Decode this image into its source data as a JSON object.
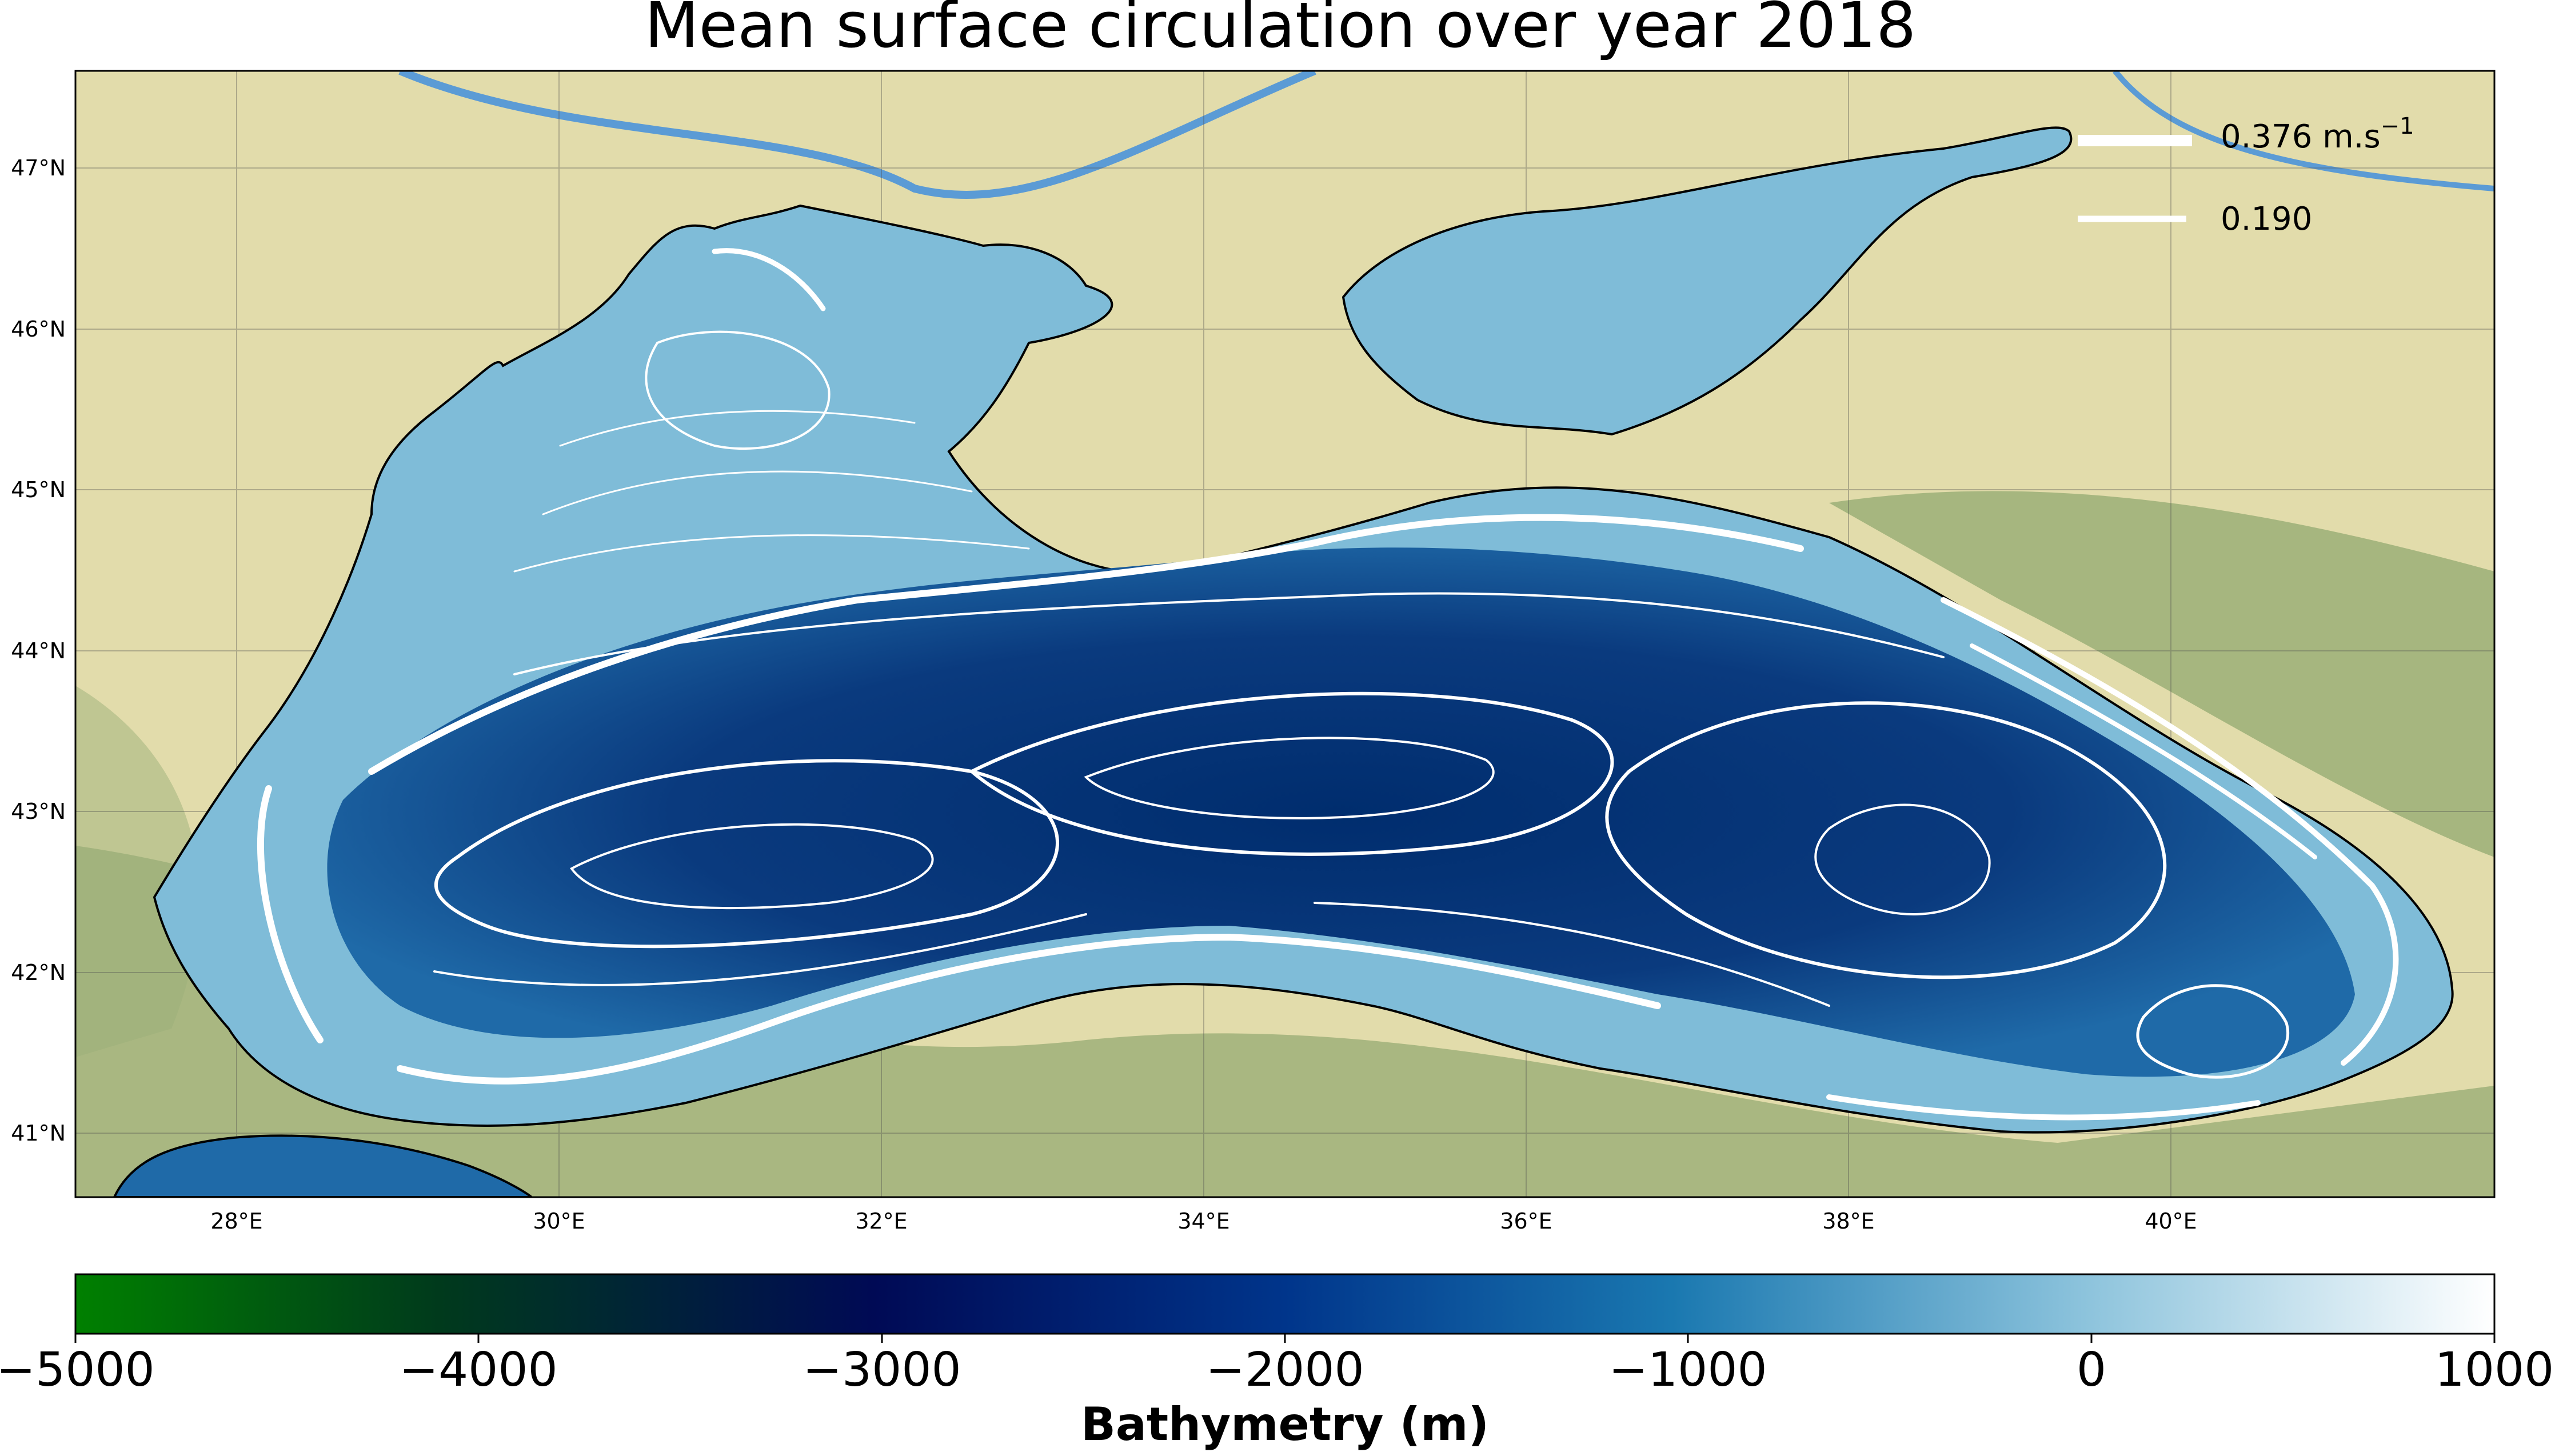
{
  "title": "Mean surface circulation over year 2018",
  "map": {
    "lat_ticks": [
      "47°N",
      "46°N",
      "45°N",
      "44°N",
      "43°N",
      "42°N",
      "41°N"
    ],
    "lon_ticks": [
      "28°E",
      "30°E",
      "32°E",
      "34°E",
      "36°E",
      "38°E",
      "40°E"
    ],
    "lon_range": [
      27.0,
      42.0
    ],
    "lat_range": [
      40.6,
      47.6
    ],
    "colors": {
      "land": "#e2dcab",
      "land_relief": "#8aa36a",
      "shelf_water": "#7fbcd8",
      "deep_water": "#0a3a7e",
      "coastline": "#000000",
      "streamline": "#ffffff",
      "river": "#5b9bd5"
    }
  },
  "legend": {
    "items": [
      {
        "label": "0.376  m.s$^{-1}$",
        "display": "0.376  m.s",
        "sup": "−1",
        "speed": 0.376
      },
      {
        "label": "0.190",
        "display": "0.190",
        "speed": 0.19
      }
    ],
    "placement": "top-right"
  },
  "colorbar": {
    "label": "Bathymetry (m)",
    "ticks": [
      "−5000",
      "−4000",
      "−3000",
      "−2000",
      "−1000",
      "0",
      "1000"
    ],
    "range": [
      -5000,
      1000
    ],
    "colormap": [
      "#008000",
      "#002a14",
      "#000a55",
      "#00358b",
      "#1a78b0",
      "#8cc3dc",
      "#ffffff"
    ]
  }
}
